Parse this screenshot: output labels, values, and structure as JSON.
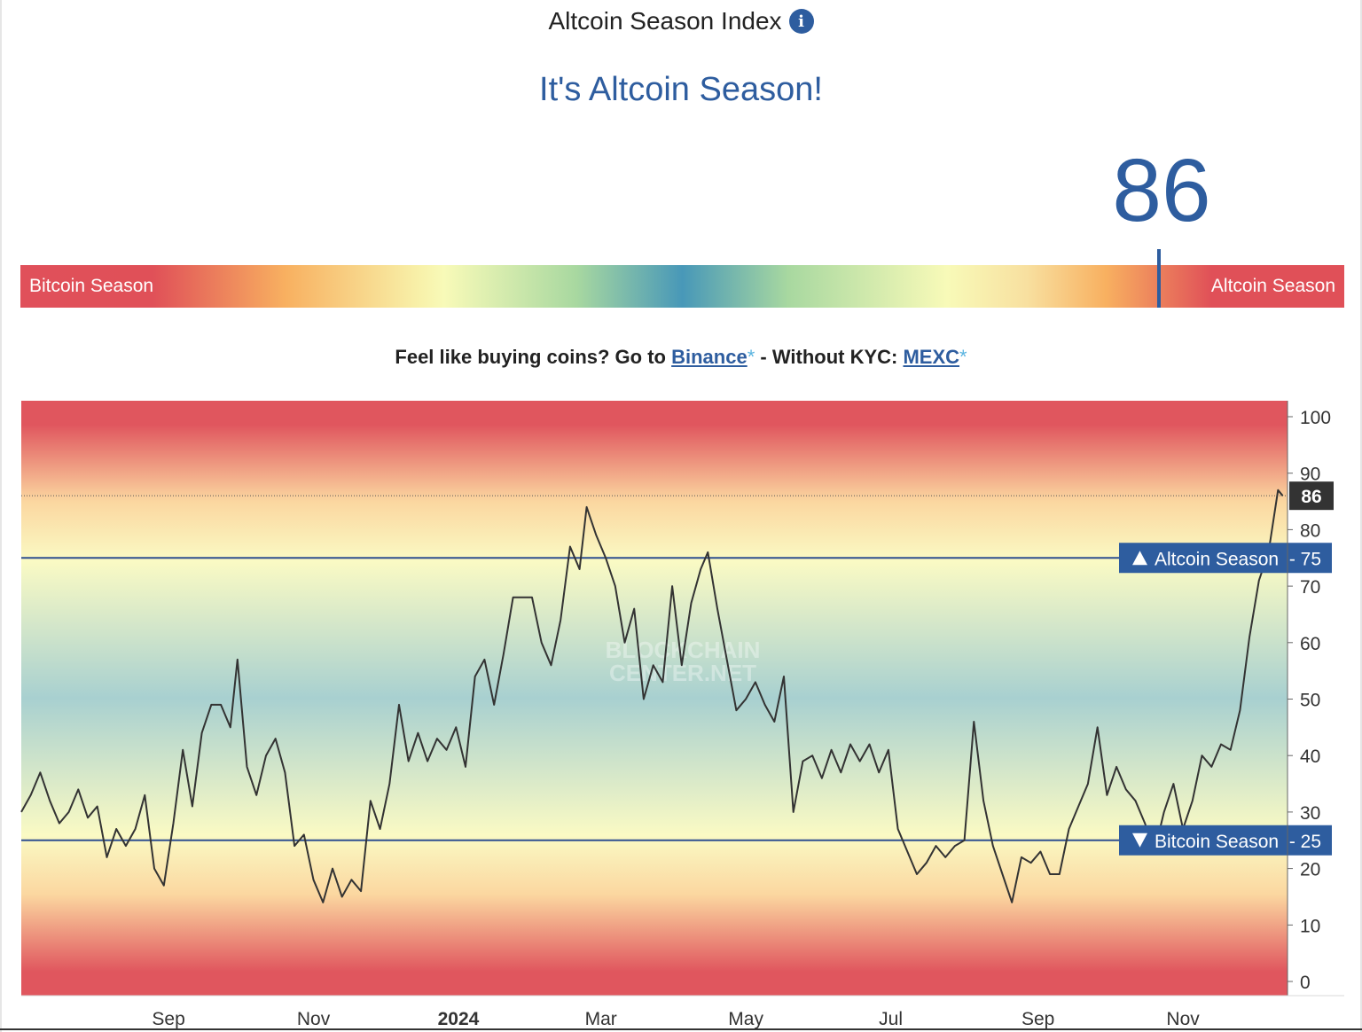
{
  "header": {
    "title": "Altcoin Season Index",
    "info_icon": "info-icon"
  },
  "status": "It's Altcoin Season!",
  "index_value": "86",
  "gauge": {
    "left_label": "Bitcoin Season",
    "right_label": "Altcoin Season",
    "value": 86,
    "scale": [
      0,
      100
    ],
    "colors": [
      "#e0505a",
      "#f8b060",
      "#f8fab8",
      "#4898b8"
    ]
  },
  "promo": {
    "prefix": "Feel like buying coins? Go to ",
    "binance_label": "Binance",
    "star": "*",
    "middle": " - Without KYC: ",
    "mexc_label": "MEXC"
  },
  "chart_data": {
    "type": "line",
    "title": "",
    "xlabel": "",
    "ylabel": "",
    "ylim": [
      0,
      100
    ],
    "y_ticks": [
      0,
      10,
      20,
      30,
      40,
      50,
      60,
      70,
      80,
      90,
      100
    ],
    "x_range": [
      "2023-07-01",
      "2024-12-15"
    ],
    "x_tick_labels": [
      {
        "date": "2023-09-01",
        "label": "Sep",
        "bold": false
      },
      {
        "date": "2023-11-01",
        "label": "Nov",
        "bold": false
      },
      {
        "date": "2024-01-01",
        "label": "2024",
        "bold": true
      },
      {
        "date": "2024-03-01",
        "label": "Mar",
        "bold": false
      },
      {
        "date": "2024-05-01",
        "label": "May",
        "bold": false
      },
      {
        "date": "2024-07-01",
        "label": "Jul",
        "bold": false
      },
      {
        "date": "2024-09-01",
        "label": "Sep",
        "bold": false
      },
      {
        "date": "2024-11-01",
        "label": "Nov",
        "bold": false
      }
    ],
    "thresholds": [
      {
        "name": "Altcoin Season",
        "value": 75,
        "direction": "up"
      },
      {
        "name": "Bitcoin Season",
        "value": 25,
        "direction": "down"
      }
    ],
    "current_value": 86,
    "background_colors": [
      "#e0565e",
      "#fbd7a0",
      "#fafac4",
      "#a8d0d0"
    ],
    "watermark": "BLOCKCHAIN CENTER.NET",
    "line_color": "#333333",
    "series": [
      {
        "values": [
          [
            "2023-07-01",
            30
          ],
          [
            "2023-07-05",
            33
          ],
          [
            "2023-07-09",
            37
          ],
          [
            "2023-07-13",
            32
          ],
          [
            "2023-07-17",
            28
          ],
          [
            "2023-07-21",
            30
          ],
          [
            "2023-07-25",
            34
          ],
          [
            "2023-07-29",
            29
          ],
          [
            "2023-08-02",
            31
          ],
          [
            "2023-08-06",
            22
          ],
          [
            "2023-08-10",
            27
          ],
          [
            "2023-08-14",
            24
          ],
          [
            "2023-08-18",
            27
          ],
          [
            "2023-08-22",
            33
          ],
          [
            "2023-08-26",
            20
          ],
          [
            "2023-08-30",
            17
          ],
          [
            "2023-09-03",
            28
          ],
          [
            "2023-09-07",
            41
          ],
          [
            "2023-09-11",
            31
          ],
          [
            "2023-09-15",
            44
          ],
          [
            "2023-09-19",
            49
          ],
          [
            "2023-09-23",
            49
          ],
          [
            "2023-09-27",
            45
          ],
          [
            "2023-09-30",
            57
          ],
          [
            "2023-10-04",
            38
          ],
          [
            "2023-10-08",
            33
          ],
          [
            "2023-10-12",
            40
          ],
          [
            "2023-10-16",
            43
          ],
          [
            "2023-10-20",
            37
          ],
          [
            "2023-10-24",
            24
          ],
          [
            "2023-10-28",
            26
          ],
          [
            "2023-11-01",
            18
          ],
          [
            "2023-11-05",
            14
          ],
          [
            "2023-11-09",
            20
          ],
          [
            "2023-11-13",
            15
          ],
          [
            "2023-11-17",
            18
          ],
          [
            "2023-11-21",
            16
          ],
          [
            "2023-11-25",
            32
          ],
          [
            "2023-11-29",
            27
          ],
          [
            "2023-12-03",
            35
          ],
          [
            "2023-12-07",
            49
          ],
          [
            "2023-12-11",
            39
          ],
          [
            "2023-12-15",
            44
          ],
          [
            "2023-12-19",
            39
          ],
          [
            "2023-12-23",
            43
          ],
          [
            "2023-12-27",
            41
          ],
          [
            "2023-12-31",
            45
          ],
          [
            "2024-01-04",
            38
          ],
          [
            "2024-01-08",
            54
          ],
          [
            "2024-01-12",
            57
          ],
          [
            "2024-01-16",
            49
          ],
          [
            "2024-01-20",
            58
          ],
          [
            "2024-01-24",
            68
          ],
          [
            "2024-01-28",
            68
          ],
          [
            "2024-02-01",
            68
          ],
          [
            "2024-02-05",
            60
          ],
          [
            "2024-02-09",
            56
          ],
          [
            "2024-02-13",
            64
          ],
          [
            "2024-02-17",
            77
          ],
          [
            "2024-02-21",
            73
          ],
          [
            "2024-02-24",
            84
          ],
          [
            "2024-02-28",
            79
          ],
          [
            "2024-03-03",
            75
          ],
          [
            "2024-03-07",
            70
          ],
          [
            "2024-03-11",
            60
          ],
          [
            "2024-03-15",
            66
          ],
          [
            "2024-03-19",
            50
          ],
          [
            "2024-03-23",
            56
          ],
          [
            "2024-03-27",
            53
          ],
          [
            "2024-03-31",
            70
          ],
          [
            "2024-04-04",
            56
          ],
          [
            "2024-04-08",
            67
          ],
          [
            "2024-04-12",
            73
          ],
          [
            "2024-04-15",
            76
          ],
          [
            "2024-04-19",
            66
          ],
          [
            "2024-04-23",
            57
          ],
          [
            "2024-04-27",
            48
          ],
          [
            "2024-05-01",
            50
          ],
          [
            "2024-05-05",
            53
          ],
          [
            "2024-05-09",
            49
          ],
          [
            "2024-05-13",
            46
          ],
          [
            "2024-05-17",
            54
          ],
          [
            "2024-05-21",
            30
          ],
          [
            "2024-05-25",
            39
          ],
          [
            "2024-05-29",
            40
          ],
          [
            "2024-06-02",
            36
          ],
          [
            "2024-06-06",
            41
          ],
          [
            "2024-06-10",
            37
          ],
          [
            "2024-06-14",
            42
          ],
          [
            "2024-06-18",
            39
          ],
          [
            "2024-06-22",
            42
          ],
          [
            "2024-06-26",
            37
          ],
          [
            "2024-06-30",
            41
          ],
          [
            "2024-07-04",
            27
          ],
          [
            "2024-07-08",
            23
          ],
          [
            "2024-07-12",
            19
          ],
          [
            "2024-07-16",
            21
          ],
          [
            "2024-07-20",
            24
          ],
          [
            "2024-07-24",
            22
          ],
          [
            "2024-07-28",
            24
          ],
          [
            "2024-08-01",
            25
          ],
          [
            "2024-08-05",
            46
          ],
          [
            "2024-08-09",
            32
          ],
          [
            "2024-08-13",
            24
          ],
          [
            "2024-08-17",
            19
          ],
          [
            "2024-08-21",
            14
          ],
          [
            "2024-08-25",
            22
          ],
          [
            "2024-08-29",
            21
          ],
          [
            "2024-09-02",
            23
          ],
          [
            "2024-09-06",
            19
          ],
          [
            "2024-09-10",
            19
          ],
          [
            "2024-09-14",
            27
          ],
          [
            "2024-09-18",
            31
          ],
          [
            "2024-09-22",
            35
          ],
          [
            "2024-09-26",
            45
          ],
          [
            "2024-09-30",
            33
          ],
          [
            "2024-10-04",
            38
          ],
          [
            "2024-10-08",
            34
          ],
          [
            "2024-10-12",
            32
          ],
          [
            "2024-10-16",
            28
          ],
          [
            "2024-10-20",
            23
          ],
          [
            "2024-10-24",
            30
          ],
          [
            "2024-10-28",
            35
          ],
          [
            "2024-11-01",
            27
          ],
          [
            "2024-11-05",
            32
          ],
          [
            "2024-11-09",
            40
          ],
          [
            "2024-11-13",
            38
          ],
          [
            "2024-11-17",
            42
          ],
          [
            "2024-11-21",
            41
          ],
          [
            "2024-11-25",
            48
          ],
          [
            "2024-11-29",
            61
          ],
          [
            "2024-12-03",
            71
          ],
          [
            "2024-12-07",
            76
          ],
          [
            "2024-12-11",
            87
          ],
          [
            "2024-12-13",
            86
          ]
        ]
      }
    ]
  }
}
